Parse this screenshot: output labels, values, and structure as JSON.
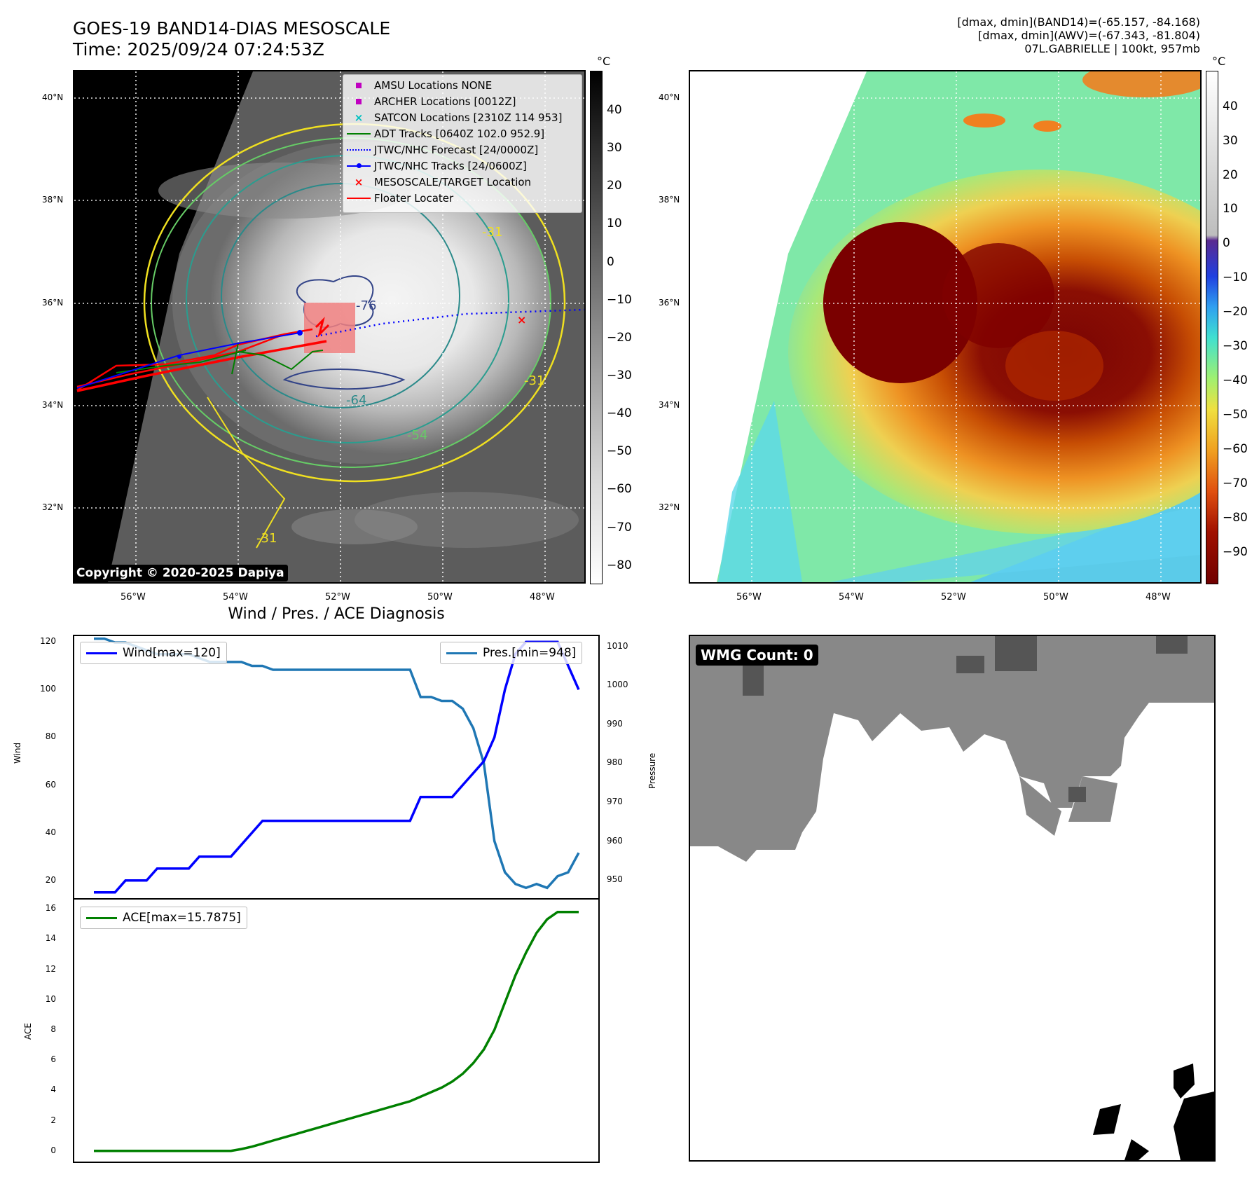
{
  "header": {
    "title_line1": "GOES-19 BAND14-DIAS MESOSCALE",
    "title_line2": "Time: 2025/09/24 07:24:53Z",
    "meta_line1": "[dmax, dmin](BAND14)=(-65.157, -84.168)",
    "meta_line2": "[dmax, dmin](AWV)=(-67.343, -81.804)",
    "meta_line3": "07L.GABRIELLE | 100kt, 957mb"
  },
  "maps": {
    "lat_labels": [
      "40°N",
      "38°N",
      "36°N",
      "34°N",
      "32°N"
    ],
    "lon_labels": [
      "56°W",
      "54°W",
      "52°W",
      "50°W",
      "48°W"
    ],
    "lat_values": [
      40,
      38,
      36,
      34,
      32
    ],
    "lon_values": [
      -56,
      -54,
      -52,
      -50,
      -48
    ],
    "copyright": "Copyright © 2020-2025 Dapiya",
    "contour_labels": [
      "-76",
      "-64",
      "-54",
      "-31",
      "-31",
      "-31"
    ],
    "left_colorbar": {
      "unit": "°C",
      "ticks": [
        "40",
        "30",
        "20",
        "10",
        "0",
        "−10",
        "−20",
        "−30",
        "−40",
        "−50",
        "−60",
        "−70",
        "−80"
      ]
    },
    "right_colorbar": {
      "unit": "°C",
      "ticks": [
        "40",
        "30",
        "20",
        "10",
        "0",
        "−10",
        "−20",
        "−30",
        "−40",
        "−50",
        "−60",
        "−70",
        "−80",
        "−90"
      ]
    },
    "legend": [
      {
        "label": "AMSU Locations NONE",
        "icon": "square-marker",
        "color": "#c000c0"
      },
      {
        "label": "ARCHER Locations [0012Z]",
        "icon": "square-marker",
        "color": "#c000c0"
      },
      {
        "label": "SATCON Locations [2310Z 114 953]",
        "icon": "x-marker",
        "color": "#00c0c0"
      },
      {
        "label": "ADT Tracks [0640Z 102.0 952.9]",
        "icon": "line",
        "color": "#008000"
      },
      {
        "label": "JTWC/NHC Forecast [24/0000Z]",
        "icon": "dotted-line",
        "color": "#0000ff"
      },
      {
        "label": "JTWC/NHC Tracks [24/0600Z]",
        "icon": "line-dot",
        "color": "#0000ff"
      },
      {
        "label": "MESOSCALE/TARGET Location",
        "icon": "x-marker",
        "color": "#ff0000"
      },
      {
        "label": "Floater Locater",
        "icon": "line",
        "color": "#ff0000"
      }
    ]
  },
  "diagnosis": {
    "title": "Wind / Pres. / ACE Diagnosis",
    "wind_ylabel": "Wind",
    "pres_ylabel": "Pressure",
    "ace_ylabel": "ACE",
    "wind_legend": "Wind[max=120]",
    "pres_legend": "Pres.[min=948]",
    "ace_legend": "ACE[max=15.7875]",
    "wind_ticks": [
      "120",
      "100",
      "80",
      "60",
      "40",
      "20"
    ],
    "pres_ticks": [
      "1010",
      "1000",
      "990",
      "980",
      "970",
      "960",
      "950"
    ],
    "ace_ticks": [
      "16",
      "14",
      "12",
      "10",
      "8",
      "6",
      "4",
      "2",
      "0"
    ]
  },
  "wmg": {
    "label": "WMG Count: 0"
  },
  "chart_data": [
    {
      "type": "line",
      "title": "Wind / Pres. / ACE Diagnosis",
      "series": [
        {
          "name": "Wind[max=120]",
          "axis": "Wind",
          "color": "#0000ff",
          "values": [
            15,
            15,
            15,
            20,
            20,
            20,
            25,
            25,
            25,
            25,
            30,
            30,
            30,
            30,
            35,
            40,
            45,
            45,
            45,
            45,
            45,
            45,
            45,
            45,
            45,
            45,
            45,
            45,
            45,
            45,
            45,
            55,
            55,
            55,
            55,
            60,
            65,
            70,
            80,
            100,
            115,
            120,
            120,
            120,
            120,
            110,
            100
          ]
        },
        {
          "name": "Pres.[min=948]",
          "axis": "Pressure",
          "color": "#1f77b4",
          "values": [
            1012,
            1012,
            1011,
            1011,
            1010,
            1009,
            1008,
            1008,
            1008,
            1008,
            1007,
            1006,
            1006,
            1006,
            1006,
            1005,
            1005,
            1004,
            1004,
            1004,
            1004,
            1004,
            1004,
            1004,
            1004,
            1004,
            1004,
            1004,
            1004,
            1004,
            1004,
            997,
            997,
            996,
            996,
            994,
            989,
            980,
            960,
            952,
            949,
            948,
            949,
            948,
            951,
            952,
            957
          ]
        },
        {
          "name": "ACE[max=15.7875]",
          "axis": "ACE",
          "color": "#008000",
          "values": [
            0,
            0,
            0,
            0,
            0,
            0,
            0,
            0,
            0,
            0,
            0,
            0,
            0,
            0,
            0.12,
            0.28,
            0.48,
            0.68,
            0.88,
            1.08,
            1.28,
            1.48,
            1.68,
            1.88,
            2.08,
            2.28,
            2.48,
            2.68,
            2.88,
            3.08,
            3.28,
            3.58,
            3.88,
            4.18,
            4.58,
            5.1,
            5.8,
            6.7,
            8.0,
            9.8,
            11.6,
            13.1,
            14.4,
            15.3,
            15.7875,
            15.7875,
            15.7875
          ]
        }
      ],
      "ylim_wind": [
        12,
        123
      ],
      "ylim_pressure": [
        945,
        1013
      ],
      "ylim_ace": [
        -0.8,
        16.7
      ]
    }
  ]
}
